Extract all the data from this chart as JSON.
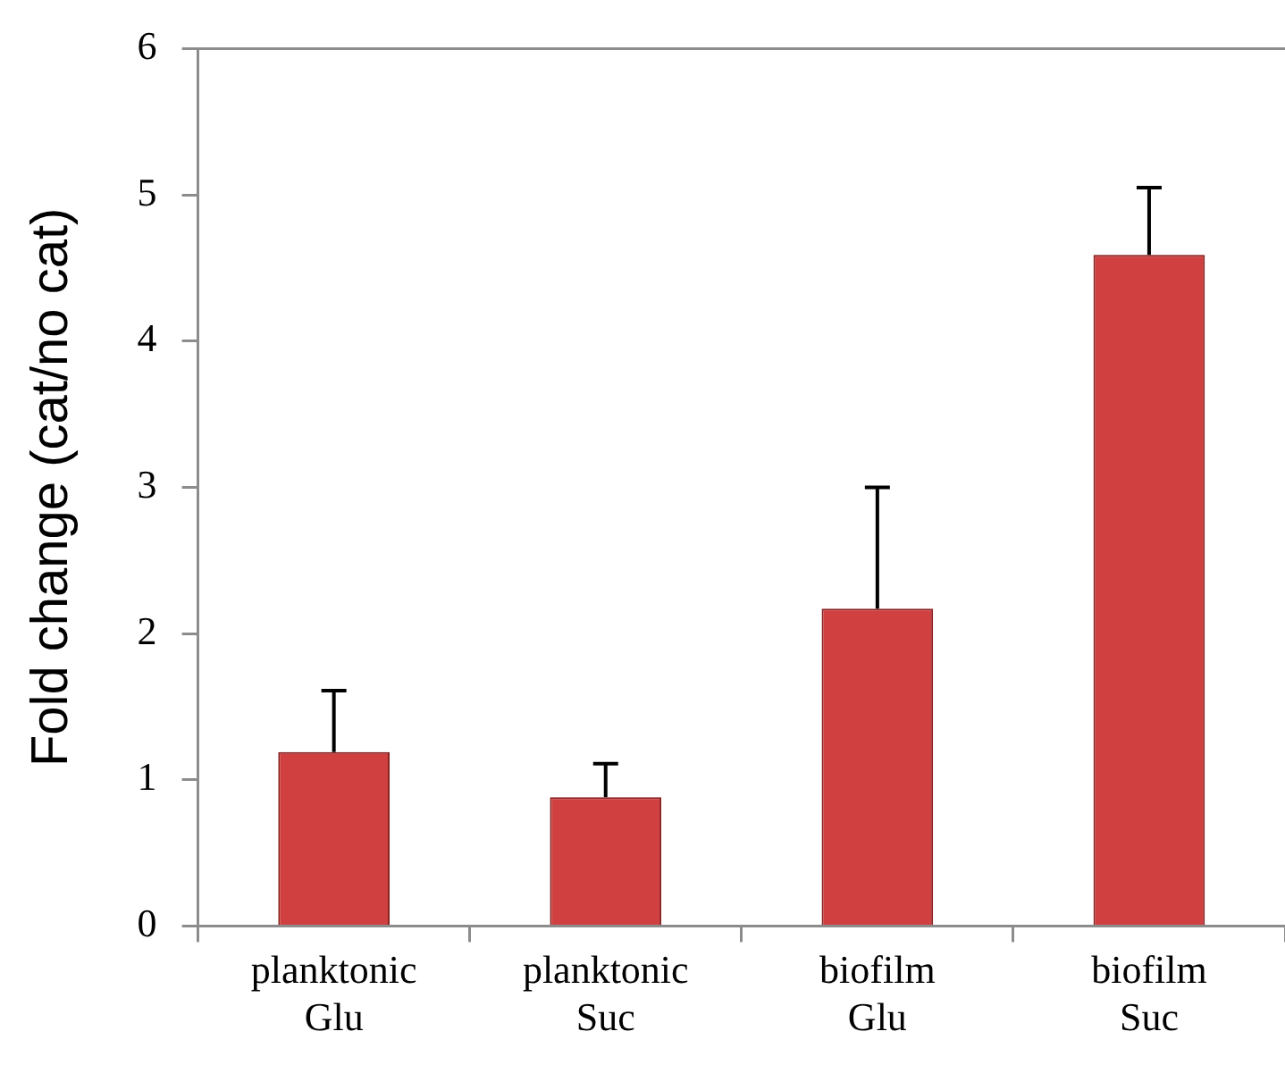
{
  "chart_data": {
    "type": "bar",
    "ylabel": "Fold change (cat/no cat)",
    "categories": [
      "planktonic\nGlu",
      "planktonic\nSuc",
      "biofilm\nGlu",
      "biofilm\nSuc"
    ],
    "values": [
      1.19,
      0.88,
      2.17,
      4.59
    ],
    "errors": [
      [
        1.19,
        1.61
      ],
      [
        0.88,
        1.11
      ],
      [
        2.17,
        3.0
      ],
      [
        4.59,
        5.05
      ]
    ],
    "color": "#d04040",
    "ylim": [
      0,
      6
    ],
    "yticks": [
      0,
      1,
      2,
      3,
      4,
      5,
      6
    ],
    "grid": false,
    "legend": false
  }
}
